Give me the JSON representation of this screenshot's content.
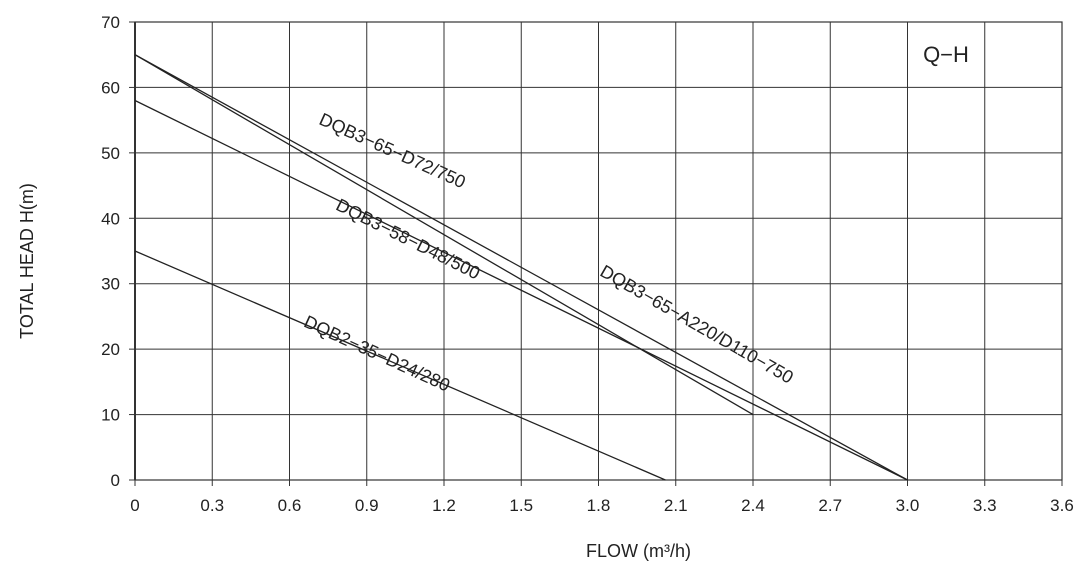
{
  "chart_data": {
    "type": "line",
    "title": "",
    "xlabel": "FLOW (m³/h)",
    "ylabel": "TOTAL HEAD  H(m)",
    "xlim": [
      0,
      3.6
    ],
    "ylim": [
      0,
      70
    ],
    "x_ticks": [
      "0",
      "0.3",
      "0.6",
      "0.9",
      "1.2",
      "1.5",
      "1.8",
      "2.1",
      "2.4",
      "2.7",
      "3.0",
      "3.3",
      "3.6"
    ],
    "x_tick_values": [
      0,
      0.3,
      0.6,
      0.9,
      1.2,
      1.5,
      1.8,
      2.1,
      2.4,
      2.7,
      3.0,
      3.3,
      3.6
    ],
    "y_ticks": [
      "0",
      "10",
      "20",
      "30",
      "40",
      "50",
      "60",
      "70"
    ],
    "y_tick_values": [
      0,
      10,
      20,
      30,
      40,
      50,
      60,
      70
    ],
    "grid": true,
    "annotation": "Q−H",
    "series": [
      {
        "label": "DQB3−65−D72/750",
        "x": [
          0,
          2.4
        ],
        "y": [
          65,
          10
        ],
        "label_at": [
          0.99,
          49.5
        ],
        "label_angle": 24.3
      },
      {
        "label": "DQB3−58−D48/500",
        "x": [
          0,
          3.0
        ],
        "y": [
          58,
          0
        ],
        "label_at": [
          1.05,
          36
        ],
        "label_angle": 26.6
      },
      {
        "label": "DQB3−65−A220/D110−750",
        "x": [
          0,
          3.0
        ],
        "y": [
          65,
          0
        ],
        "label_at": [
          2.17,
          23
        ],
        "label_angle": 29.9
      },
      {
        "label": "DQB2−35−D24/280",
        "x": [
          0,
          2.06
        ],
        "y": [
          35,
          0
        ],
        "label_at": [
          0.93,
          18.5
        ],
        "label_angle": 24.6
      }
    ]
  }
}
